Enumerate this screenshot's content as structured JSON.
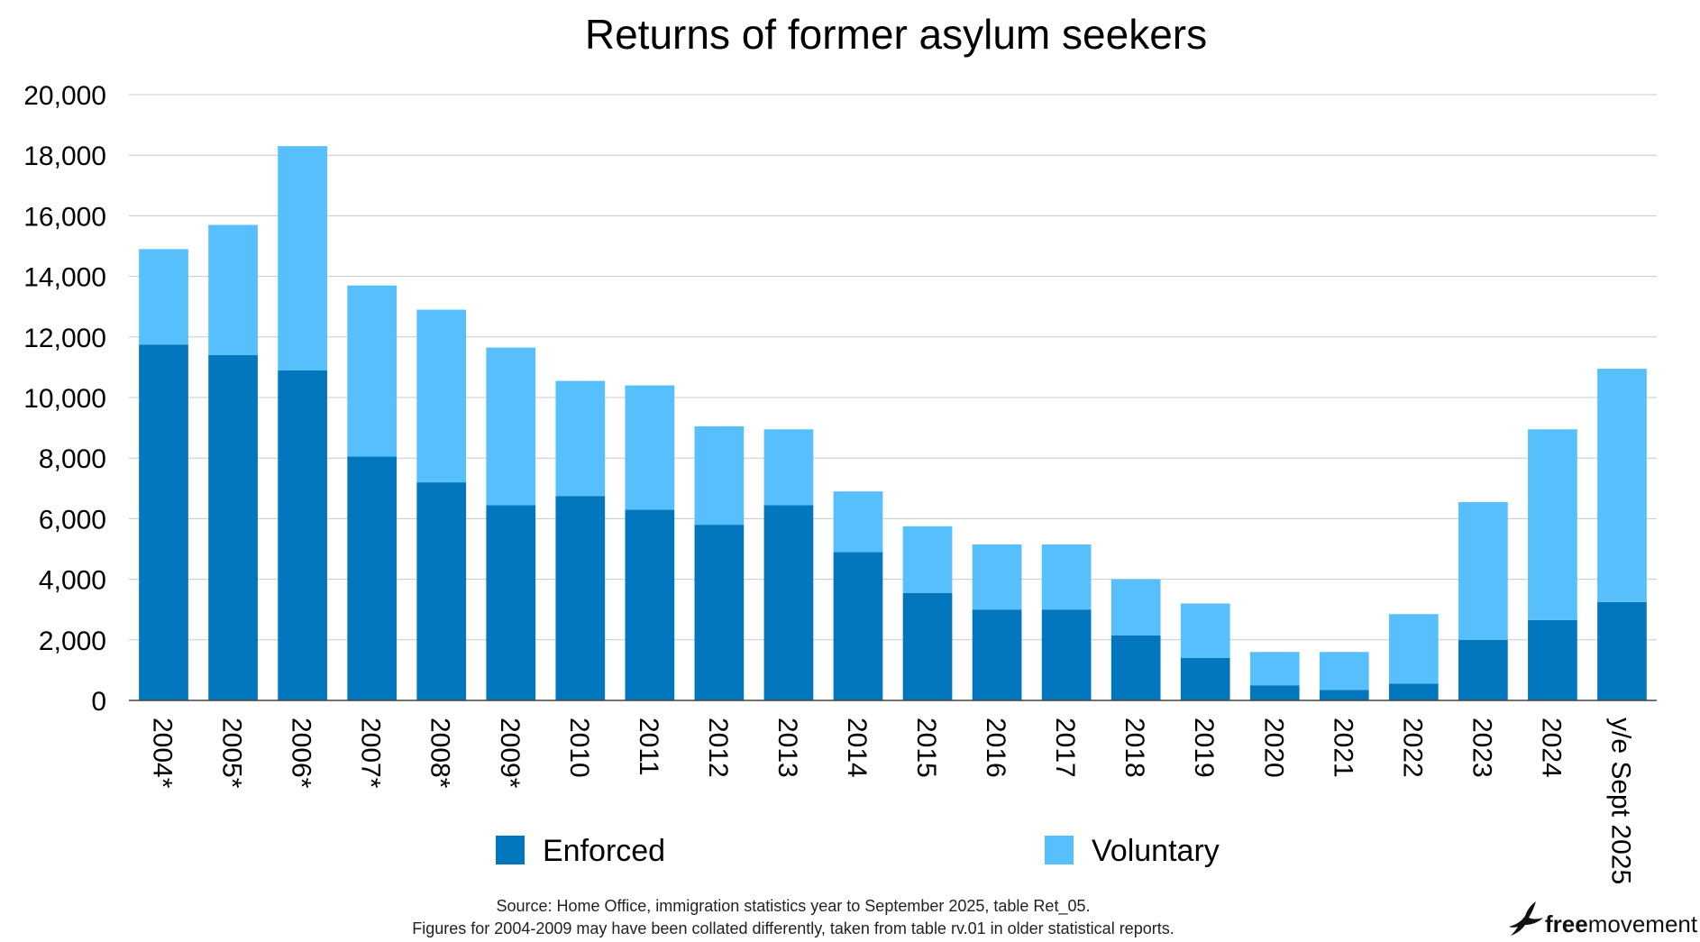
{
  "chart_data": {
    "type": "bar",
    "stacked": true,
    "title": "Returns of former asylum seekers",
    "xlabel": "",
    "ylabel": "",
    "ylim": [
      0,
      20000
    ],
    "yticks": [
      "0",
      "2,000",
      "4,000",
      "6,000",
      "8,000",
      "10,000",
      "12,000",
      "14,000",
      "16,000",
      "18,000",
      "20,000"
    ],
    "ytick_values": [
      0,
      2000,
      4000,
      6000,
      8000,
      10000,
      12000,
      14000,
      16000,
      18000,
      20000
    ],
    "grid": true,
    "categories": [
      "2004*",
      "2005*",
      "2006*",
      "2007*",
      "2008*",
      "2009*",
      "2010",
      "2011",
      "2012",
      "2013",
      "2014",
      "2015",
      "2016",
      "2017",
      "2018",
      "2019",
      "2020",
      "2021",
      "2022",
      "2023",
      "2024",
      "y/e Sept 2025"
    ],
    "series": [
      {
        "name": "Enforced",
        "color": "#0277bd",
        "values": [
          11750,
          11400,
          10900,
          8050,
          7200,
          6450,
          6750,
          6300,
          5800,
          6450,
          4900,
          3550,
          3000,
          3000,
          2150,
          1400,
          500,
          350,
          550,
          2000,
          2650,
          3250
        ]
      },
      {
        "name": "Voluntary",
        "color": "#56bffc",
        "values": [
          3150,
          4300,
          7400,
          5650,
          5700,
          5200,
          3800,
          4100,
          3250,
          2500,
          2000,
          2200,
          2150,
          2150,
          1850,
          1800,
          1100,
          1250,
          2300,
          4550,
          6300,
          7700
        ]
      }
    ],
    "legend": [
      "Enforced",
      "Voluntary"
    ],
    "legend_position": "bottom"
  },
  "footer": {
    "source_line1": "Source: Home Office, immigration statistics year to September 2025, table Ret_05.",
    "source_line2": "Figures for 2004-2009 may have been collated differently, taken from table rv.01 in older statistical reports."
  },
  "brand": {
    "prefix": "free",
    "suffix": "movement"
  }
}
